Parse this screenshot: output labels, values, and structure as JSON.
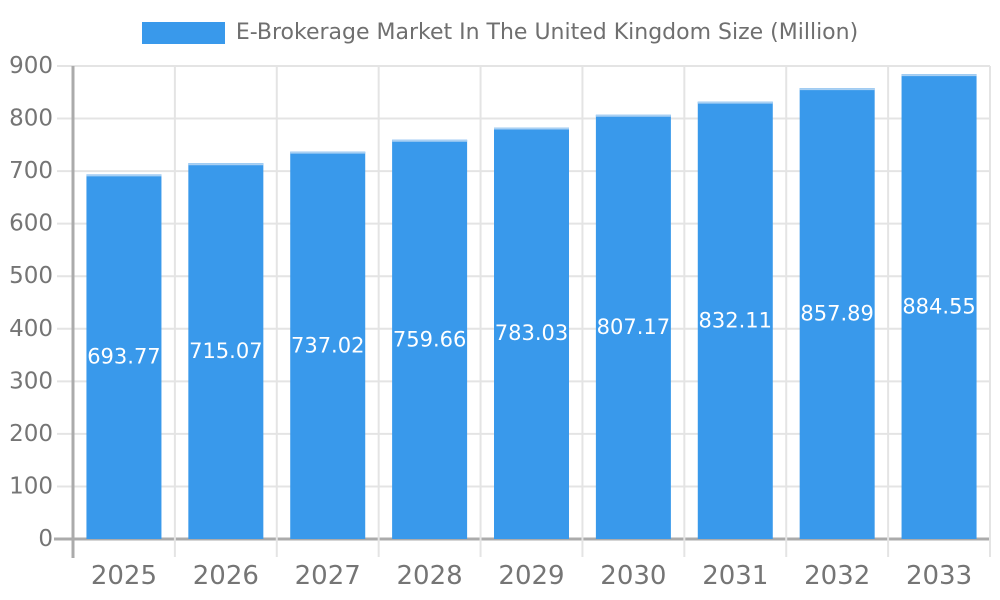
{
  "legend": {
    "label": "E-Brokerage Market In The United Kingdom Size (Million)"
  },
  "chart_data": {
    "type": "bar",
    "title": "E-Brokerage Market In The United Kingdom Size (Million)",
    "series_name": "E-Brokerage Market In The United Kingdom Size (Million)",
    "categories": [
      "2025",
      "2026",
      "2027",
      "2028",
      "2029",
      "2030",
      "2031",
      "2032",
      "2033"
    ],
    "values": [
      693.77,
      715.07,
      737.02,
      759.66,
      783.03,
      807.17,
      832.11,
      857.89,
      884.55
    ],
    "value_labels": [
      "693.77",
      "715.07",
      "737.02",
      "759.66",
      "783.03",
      "807.17",
      "832.11",
      "857.89",
      "884.55"
    ],
    "xlabel": "",
    "ylabel": "",
    "ylim": [
      0,
      900
    ],
    "ytick_step": 100,
    "ytick_labels": [
      "0",
      "100",
      "200",
      "300",
      "400",
      "500",
      "600",
      "700",
      "800",
      "900"
    ],
    "grid": true,
    "legend_position": "top-center",
    "value_label_position": "inside-center",
    "colors": {
      "bar": "#3999eb",
      "bar_top_edge": "#a9d0f3",
      "grid": "#e4e4e4",
      "axis": "#ababab",
      "tick_label": "#757575",
      "value_label": "#ffffff",
      "background": "#ffffff"
    }
  }
}
